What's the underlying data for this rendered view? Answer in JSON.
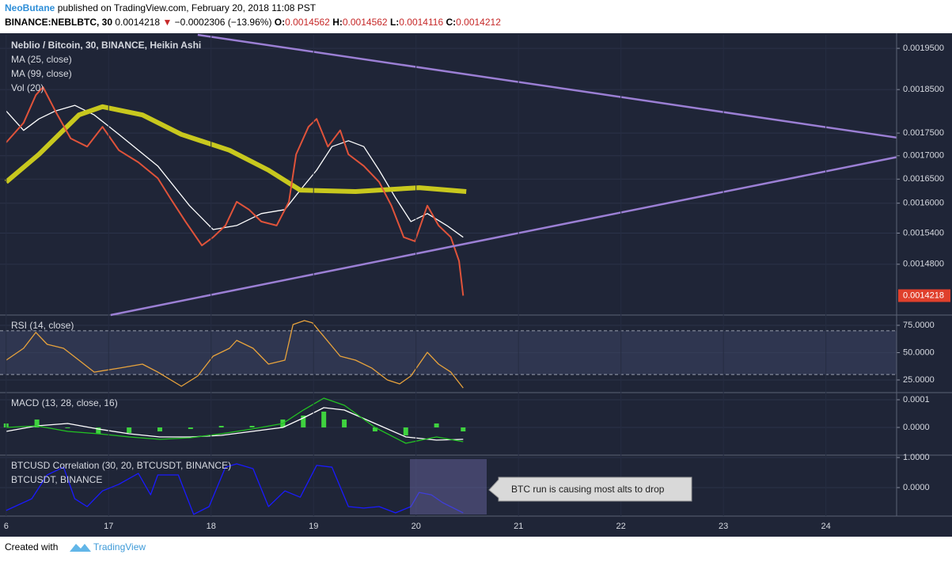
{
  "header": {
    "author": "NeoButane",
    "published": "published on TradingView.com, February 20, 2018 11:08 PST",
    "symbol": "BINANCE:NEBLBTC, 30",
    "last": "0.0014218",
    "arrow": "▼",
    "change": "−0.0002306 (−13.96%)",
    "o_label": "O:",
    "o": "0.0014562",
    "h_label": "H:",
    "h": "0.0014562",
    "l_label": "L:",
    "l": "0.0014116",
    "c_label": "C:",
    "c": "0.0014212"
  },
  "chart_data": [
    {
      "type": "line",
      "title": "Neblio / Bitcoin, 30, BINANCE, Heikin Ashi",
      "volume_label": "Vol (20)",
      "log_scale": true,
      "xlim": [
        15.94,
        24.69
      ],
      "ylim": [
        0.001387,
        0.001984
      ],
      "yticks": [
        {
          "value": 0.00195,
          "label": "0.0019500"
        },
        {
          "value": 0.00185,
          "label": "0.0018500"
        },
        {
          "value": 0.00175,
          "label": "0.0017500"
        },
        {
          "value": 0.0017,
          "label": "0.0017000"
        },
        {
          "value": 0.00165,
          "label": "0.0016500"
        },
        {
          "value": 0.0016,
          "label": "0.0016000"
        },
        {
          "value": 0.00154,
          "label": "0.0015400"
        },
        {
          "value": 0.00148,
          "label": "0.0014800"
        }
      ],
      "price": {
        "color": "#e0533a",
        "x": [
          16.0,
          16.17,
          16.29,
          16.36,
          16.48,
          16.63,
          16.79,
          16.94,
          17.1,
          17.29,
          17.48,
          17.6,
          17.75,
          17.91,
          18.02,
          18.14,
          18.25,
          18.37,
          18.49,
          18.64,
          18.76,
          18.83,
          18.95,
          19.03,
          19.14,
          19.26,
          19.34,
          19.49,
          19.64,
          19.76,
          19.88,
          19.99,
          20.11,
          20.22,
          20.34,
          20.42,
          20.46
        ],
        "values": [
          0.001729,
          0.001773,
          0.001837,
          0.001856,
          0.0018,
          0.001738,
          0.00172,
          0.001764,
          0.001712,
          0.001686,
          0.001652,
          0.001611,
          0.001563,
          0.001516,
          0.001532,
          0.001555,
          0.001603,
          0.001587,
          0.001563,
          0.001555,
          0.001603,
          0.001703,
          0.001764,
          0.001782,
          0.00172,
          0.001756,
          0.001703,
          0.001678,
          0.001644,
          0.001595,
          0.001532,
          0.001524,
          0.001595,
          0.001555,
          0.001532,
          0.001486,
          0.0014218
        ]
      },
      "series": [
        {
          "name": "MA (25, close)",
          "color": "#ffffff",
          "x": [
            16.0,
            16.17,
            16.32,
            16.48,
            16.67,
            16.86,
            17.1,
            17.48,
            17.79,
            18.02,
            18.25,
            18.49,
            18.72,
            18.87,
            19.03,
            19.18,
            19.34,
            19.49,
            19.64,
            19.8,
            19.95,
            20.11,
            20.3,
            20.46
          ],
          "values": [
            0.0018,
            0.001756,
            0.001782,
            0.0018,
            0.001813,
            0.001791,
            0.001747,
            0.001678,
            0.001595,
            0.001547,
            0.001555,
            0.001579,
            0.001587,
            0.001627,
            0.001669,
            0.00172,
            0.001733,
            0.00172,
            0.001669,
            0.001611,
            0.001563,
            0.001579,
            0.001555,
            0.001532
          ]
        },
        {
          "name": "MA (99, close)",
          "color": "#c8c81e",
          "x": [
            16.0,
            16.32,
            16.71,
            16.94,
            17.33,
            17.71,
            18.18,
            18.56,
            18.87,
            19.41,
            20.03,
            20.49
          ],
          "values": [
            0.001644,
            0.001703,
            0.001791,
            0.00181,
            0.001791,
            0.001747,
            0.001712,
            0.001669,
            0.001627,
            0.001624,
            0.001632,
            0.001624
          ]
        }
      ],
      "trendline_color": "#9b7fd4",
      "trendlines": [
        {
          "x": [
            17.87,
            24.69
          ],
          "values": [
            0.001984,
            0.00174
          ]
        },
        {
          "x": [
            17.02,
            24.69
          ],
          "values": [
            0.001387,
            0.001697
          ]
        }
      ]
    },
    {
      "type": "line",
      "title": "RSI (14, close)",
      "xlim": [
        15.94,
        24.69
      ],
      "ylim": [
        13.4,
        84.4
      ],
      "yticks": [
        {
          "value": 75,
          "label": "75.0000"
        },
        {
          "value": 50,
          "label": "50.0000"
        },
        {
          "value": 25,
          "label": "25.0000"
        }
      ],
      "bands": [
        30,
        70
      ],
      "series": [
        {
          "color": "#e8a33c",
          "x": [
            16.0,
            16.17,
            16.29,
            16.4,
            16.56,
            16.71,
            16.86,
            17.1,
            17.33,
            17.48,
            17.71,
            17.87,
            18.02,
            18.18,
            18.25,
            18.41,
            18.56,
            18.72,
            18.8,
            18.91,
            18.99,
            19.1,
            19.26,
            19.41,
            19.57,
            19.72,
            19.84,
            19.95,
            20.11,
            20.22,
            20.34,
            20.46
          ],
          "values": [
            43.1,
            54.0,
            68.5,
            57.6,
            54.0,
            43.1,
            32.2,
            35.8,
            39.5,
            32.2,
            19.2,
            28.6,
            46.7,
            54.0,
            61.2,
            54.0,
            39.5,
            43.1,
            75.7,
            79.3,
            77.2,
            64.8,
            46.7,
            43.1,
            35.8,
            25.0,
            21.4,
            28.6,
            50.3,
            39.5,
            32.2,
            17.7
          ]
        }
      ]
    },
    {
      "type": "line",
      "title": "MACD (13, 28, close, 16)",
      "xlim": [
        15.94,
        24.69
      ],
      "ylim": [
        -0.0001,
        0.0001257
      ],
      "yticks": [
        0.0001,
        {
          "value": 0,
          "label": "0.0000"
        }
      ],
      "x": [
        16.0,
        16.3,
        16.6,
        16.9,
        17.2,
        17.5,
        17.8,
        18.1,
        18.4,
        18.7,
        18.9,
        19.1,
        19.3,
        19.6,
        19.9,
        20.2,
        20.46
      ],
      "histogram": {
        "color": "#3fd23f",
        "values": [
          1.43e-05,
          2.86e-05,
          0,
          -2.29e-05,
          -2e-05,
          -1.43e-05,
          -5.7e-06,
          5.7e-06,
          5.7e-06,
          2.86e-05,
          4.29e-05,
          5.71e-05,
          2.86e-05,
          -1.43e-05,
          -2.86e-05,
          1.43e-05,
          -1.43e-05
        ]
      },
      "series": [
        {
          "color": "#ffffff",
          "values": [
            -1.43e-05,
            5.7e-06,
            1.43e-05,
            -5.7e-06,
            -2.29e-05,
            -3.43e-05,
            -3.43e-05,
            -2.86e-05,
            -1.43e-05,
            0,
            3.43e-05,
            7.14e-05,
            6.29e-05,
            1.43e-05,
            -3.43e-05,
            -4.57e-05,
            -4.29e-05
          ]
        },
        {
          "color": "#22c322",
          "values": [
            0,
            5.7e-06,
            -1.43e-05,
            -2.29e-05,
            -3.43e-05,
            -4.29e-05,
            -3.71e-05,
            -2.29e-05,
            -5.7e-06,
            1.43e-05,
            6.29e-05,
            0.0001057,
            8e-05,
            0,
            -5.71e-05,
            -3.43e-05,
            -5.14e-05
          ]
        }
      ]
    },
    {
      "type": "line",
      "title": "BTCUSD Correlation (30, 20, BTCUSDT, BINANCE)",
      "subtitle": "BTCUSDT, BINANCE",
      "xlim": [
        15.94,
        24.69
      ],
      "ylim": [
        -0.947,
        1.079
      ],
      "yticks": [
        {
          "value": 1,
          "label": "1.0000"
        },
        {
          "value": 0,
          "label": "0.0000"
        }
      ],
      "xticks": [
        {
          "value": 16,
          "label": "6"
        },
        17,
        18,
        19,
        20,
        21,
        22,
        23,
        24
      ],
      "annotation": "BTC run is causing most alts to drop",
      "series": [
        {
          "color": "#1a1aff",
          "x": [
            16.0,
            16.25,
            16.4,
            16.56,
            16.67,
            16.79,
            16.94,
            17.1,
            17.29,
            17.41,
            17.48,
            17.68,
            17.83,
            17.98,
            18.14,
            18.25,
            18.41,
            18.56,
            18.72,
            18.87,
            18.99,
            19.03,
            19.18,
            19.34,
            19.49,
            19.64,
            19.8,
            19.95,
            20.03,
            20.15,
            20.26,
            20.46
          ],
          "values": [
            -0.76,
            -0.37,
            0.42,
            0.68,
            -0.37,
            -0.63,
            -0.11,
            0.11,
            0.47,
            -0.24,
            0.42,
            0.42,
            -0.89,
            -0.63,
            0.68,
            0.79,
            0.63,
            -0.63,
            -0.11,
            -0.32,
            0.47,
            0.74,
            0.68,
            -0.63,
            -0.68,
            -0.63,
            -0.84,
            -0.63,
            -0.16,
            -0.24,
            -0.5,
            -0.84
          ]
        }
      ]
    }
  ],
  "footer": {
    "created": "Created with",
    "brand": "TradingView"
  }
}
